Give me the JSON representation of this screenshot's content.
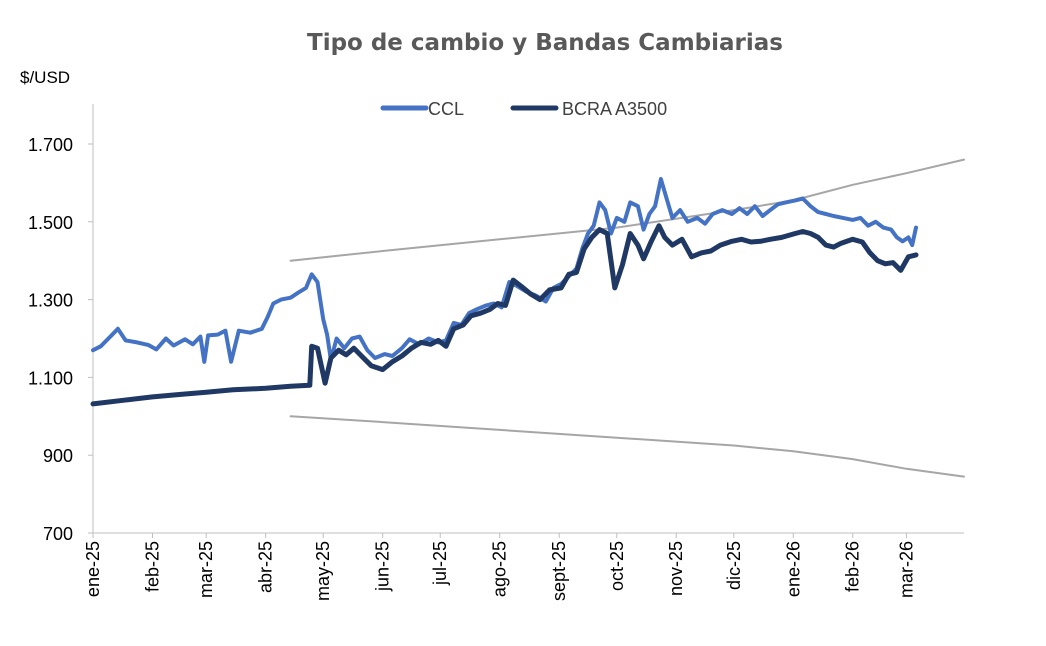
{
  "chart_data": {
    "type": "line",
    "title": "Tipo de cambio y Bandas Cambiarias",
    "ylabel": "$/USD",
    "xlabel": "",
    "ylim": [
      700,
      1800
    ],
    "yticks": [
      "700",
      "900",
      "1.100",
      "1.300",
      "1.500",
      "1.700"
    ],
    "ytick_values": [
      700,
      900,
      1100,
      1300,
      1500,
      1700
    ],
    "x_start": "2025-01-01",
    "x_end": "2026-03-31",
    "xticks": [
      "ene-25",
      "feb-25",
      "mar-25",
      "abr-25",
      "may-25",
      "jun-25",
      "jul-25",
      "ago-25",
      "sept-25",
      "oct-25",
      "nov-25",
      "dic-25",
      "ene-26",
      "feb-26",
      "mar-26"
    ],
    "xtick_dates": [
      "2025-01-01",
      "2025-02-01",
      "2025-03-01",
      "2025-04-01",
      "2025-05-01",
      "2025-06-01",
      "2025-07-01",
      "2025-08-01",
      "2025-09-01",
      "2025-10-01",
      "2025-11-01",
      "2025-12-01",
      "2026-01-01",
      "2026-02-01",
      "2026-03-01"
    ],
    "legend": [
      "CCL",
      "BCRA A3500"
    ],
    "grid": false,
    "series": [
      {
        "name": "CCL",
        "color": "#4472c4",
        "points": [
          [
            "2025-01-01",
            1170
          ],
          [
            "2025-01-05",
            1180
          ],
          [
            "2025-01-10",
            1205
          ],
          [
            "2025-01-14",
            1225
          ],
          [
            "2025-01-18",
            1195
          ],
          [
            "2025-01-24",
            1190
          ],
          [
            "2025-01-30",
            1183
          ],
          [
            "2025-02-03",
            1172
          ],
          [
            "2025-02-08",
            1200
          ],
          [
            "2025-02-12",
            1182
          ],
          [
            "2025-02-18",
            1198
          ],
          [
            "2025-02-22",
            1185
          ],
          [
            "2025-02-26",
            1205
          ],
          [
            "2025-02-28",
            1140
          ],
          [
            "2025-03-02",
            1208
          ],
          [
            "2025-03-07",
            1210
          ],
          [
            "2025-03-11",
            1220
          ],
          [
            "2025-03-14",
            1140
          ],
          [
            "2025-03-18",
            1220
          ],
          [
            "2025-03-24",
            1215
          ],
          [
            "2025-03-30",
            1225
          ],
          [
            "2025-04-02",
            1255
          ],
          [
            "2025-04-05",
            1290
          ],
          [
            "2025-04-09",
            1300
          ],
          [
            "2025-04-14",
            1305
          ],
          [
            "2025-04-18",
            1318
          ],
          [
            "2025-04-22",
            1330
          ],
          [
            "2025-04-25",
            1365
          ],
          [
            "2025-04-28",
            1345
          ],
          [
            "2025-05-01",
            1250
          ],
          [
            "2025-05-03",
            1210
          ],
          [
            "2025-05-05",
            1145
          ],
          [
            "2025-05-08",
            1200
          ],
          [
            "2025-05-12",
            1175
          ],
          [
            "2025-05-16",
            1200
          ],
          [
            "2025-05-20",
            1205
          ],
          [
            "2025-05-24",
            1170
          ],
          [
            "2025-05-28",
            1150
          ],
          [
            "2025-06-02",
            1160
          ],
          [
            "2025-06-06",
            1155
          ],
          [
            "2025-06-11",
            1175
          ],
          [
            "2025-06-15",
            1198
          ],
          [
            "2025-06-20",
            1185
          ],
          [
            "2025-06-25",
            1200
          ],
          [
            "2025-06-30",
            1190
          ],
          [
            "2025-07-04",
            1195
          ],
          [
            "2025-07-08",
            1240
          ],
          [
            "2025-07-12",
            1235
          ],
          [
            "2025-07-16",
            1265
          ],
          [
            "2025-07-20",
            1275
          ],
          [
            "2025-07-25",
            1285
          ],
          [
            "2025-07-29",
            1290
          ],
          [
            "2025-08-02",
            1280
          ],
          [
            "2025-08-06",
            1345
          ],
          [
            "2025-08-10",
            1335
          ],
          [
            "2025-08-15",
            1320
          ],
          [
            "2025-08-20",
            1310
          ],
          [
            "2025-08-25",
            1295
          ],
          [
            "2025-08-29",
            1330
          ],
          [
            "2025-09-02",
            1340
          ],
          [
            "2025-09-06",
            1360
          ],
          [
            "2025-09-10",
            1380
          ],
          [
            "2025-09-13",
            1430
          ],
          [
            "2025-09-16",
            1470
          ],
          [
            "2025-09-19",
            1490
          ],
          [
            "2025-09-22",
            1550
          ],
          [
            "2025-09-25",
            1530
          ],
          [
            "2025-09-28",
            1470
          ],
          [
            "2025-10-01",
            1510
          ],
          [
            "2025-10-05",
            1500
          ],
          [
            "2025-10-08",
            1550
          ],
          [
            "2025-10-12",
            1540
          ],
          [
            "2025-10-15",
            1480
          ],
          [
            "2025-10-18",
            1520
          ],
          [
            "2025-10-21",
            1540
          ],
          [
            "2025-10-24",
            1610
          ],
          [
            "2025-10-27",
            1560
          ],
          [
            "2025-10-30",
            1510
          ],
          [
            "2025-11-03",
            1530
          ],
          [
            "2025-11-07",
            1500
          ],
          [
            "2025-11-12",
            1510
          ],
          [
            "2025-11-16",
            1495
          ],
          [
            "2025-11-20",
            1520
          ],
          [
            "2025-11-25",
            1530
          ],
          [
            "2025-11-30",
            1520
          ],
          [
            "2025-12-04",
            1535
          ],
          [
            "2025-12-08",
            1520
          ],
          [
            "2025-12-12",
            1540
          ],
          [
            "2025-12-16",
            1515
          ],
          [
            "2025-12-20",
            1530
          ],
          [
            "2025-12-24",
            1545
          ],
          [
            "2025-12-28",
            1550
          ],
          [
            "2026-01-02",
            1555
          ],
          [
            "2026-01-06",
            1560
          ],
          [
            "2026-01-10",
            1540
          ],
          [
            "2026-01-14",
            1525
          ],
          [
            "2026-01-18",
            1520
          ],
          [
            "2026-01-22",
            1515
          ],
          [
            "2026-01-27",
            1510
          ],
          [
            "2026-02-01",
            1505
          ],
          [
            "2026-02-05",
            1510
          ],
          [
            "2026-02-09",
            1490
          ],
          [
            "2026-02-13",
            1500
          ],
          [
            "2026-02-17",
            1485
          ],
          [
            "2026-02-21",
            1480
          ],
          [
            "2026-02-24",
            1460
          ],
          [
            "2026-02-27",
            1450
          ],
          [
            "2026-03-02",
            1460
          ],
          [
            "2026-03-04",
            1440
          ],
          [
            "2026-03-06",
            1485
          ]
        ]
      },
      {
        "name": "BCRA A3500",
        "color": "#1f3864",
        "points": [
          [
            "2025-01-01",
            1032
          ],
          [
            "2025-01-15",
            1040
          ],
          [
            "2025-02-01",
            1050
          ],
          [
            "2025-02-15",
            1056
          ],
          [
            "2025-03-01",
            1062
          ],
          [
            "2025-03-15",
            1068
          ],
          [
            "2025-04-01",
            1072
          ],
          [
            "2025-04-14",
            1077
          ],
          [
            "2025-04-24",
            1080
          ],
          [
            "2025-04-25",
            1180
          ],
          [
            "2025-04-28",
            1175
          ],
          [
            "2025-05-02",
            1085
          ],
          [
            "2025-05-05",
            1150
          ],
          [
            "2025-05-09",
            1170
          ],
          [
            "2025-05-13",
            1158
          ],
          [
            "2025-05-17",
            1175
          ],
          [
            "2025-05-22",
            1150
          ],
          [
            "2025-05-26",
            1130
          ],
          [
            "2025-06-01",
            1120
          ],
          [
            "2025-06-06",
            1140
          ],
          [
            "2025-06-11",
            1155
          ],
          [
            "2025-06-16",
            1175
          ],
          [
            "2025-06-21",
            1190
          ],
          [
            "2025-06-26",
            1185
          ],
          [
            "2025-06-30",
            1195
          ],
          [
            "2025-07-04",
            1180
          ],
          [
            "2025-07-08",
            1225
          ],
          [
            "2025-07-13",
            1235
          ],
          [
            "2025-07-17",
            1258
          ],
          [
            "2025-07-22",
            1265
          ],
          [
            "2025-07-27",
            1275
          ],
          [
            "2025-07-31",
            1290
          ],
          [
            "2025-08-04",
            1285
          ],
          [
            "2025-08-08",
            1350
          ],
          [
            "2025-08-12",
            1335
          ],
          [
            "2025-08-17",
            1315
          ],
          [
            "2025-08-22",
            1300
          ],
          [
            "2025-08-27",
            1325
          ],
          [
            "2025-09-02",
            1330
          ],
          [
            "2025-09-06",
            1365
          ],
          [
            "2025-09-10",
            1370
          ],
          [
            "2025-09-14",
            1430
          ],
          [
            "2025-09-18",
            1460
          ],
          [
            "2025-09-22",
            1480
          ],
          [
            "2025-09-26",
            1470
          ],
          [
            "2025-09-30",
            1330
          ],
          [
            "2025-10-04",
            1390
          ],
          [
            "2025-10-08",
            1470
          ],
          [
            "2025-10-12",
            1440
          ],
          [
            "2025-10-15",
            1405
          ],
          [
            "2025-10-19",
            1450
          ],
          [
            "2025-10-23",
            1490
          ],
          [
            "2025-10-26",
            1460
          ],
          [
            "2025-10-30",
            1440
          ],
          [
            "2025-11-04",
            1455
          ],
          [
            "2025-11-09",
            1410
          ],
          [
            "2025-11-14",
            1420
          ],
          [
            "2025-11-19",
            1425
          ],
          [
            "2025-11-24",
            1440
          ],
          [
            "2025-11-30",
            1450
          ],
          [
            "2025-12-05",
            1455
          ],
          [
            "2025-12-10",
            1448
          ],
          [
            "2025-12-15",
            1450
          ],
          [
            "2025-12-20",
            1455
          ],
          [
            "2025-12-26",
            1460
          ],
          [
            "2026-01-02",
            1470
          ],
          [
            "2026-01-06",
            1475
          ],
          [
            "2026-01-10",
            1470
          ],
          [
            "2026-01-14",
            1460
          ],
          [
            "2026-01-18",
            1440
          ],
          [
            "2026-01-22",
            1435
          ],
          [
            "2026-01-26",
            1445
          ],
          [
            "2026-02-01",
            1455
          ],
          [
            "2026-02-06",
            1448
          ],
          [
            "2026-02-10",
            1420
          ],
          [
            "2026-02-14",
            1400
          ],
          [
            "2026-02-18",
            1392
          ],
          [
            "2026-02-22",
            1395
          ],
          [
            "2026-02-26",
            1375
          ],
          [
            "2026-03-02",
            1410
          ],
          [
            "2026-03-06",
            1415
          ]
        ]
      },
      {
        "name": "",
        "color": "#a6a6a6",
        "points": [
          [
            "2025-04-14",
            1400
          ],
          [
            "2025-06-01",
            1425
          ],
          [
            "2025-08-01",
            1455
          ],
          [
            "2025-10-01",
            1485
          ],
          [
            "2025-12-01",
            1530
          ],
          [
            "2026-01-01",
            1555
          ],
          [
            "2026-02-01",
            1595
          ],
          [
            "2026-03-01",
            1625
          ],
          [
            "2026-03-31",
            1660
          ]
        ]
      },
      {
        "name": "",
        "color": "#a6a6a6",
        "points": [
          [
            "2025-04-14",
            1000
          ],
          [
            "2025-06-01",
            985
          ],
          [
            "2025-08-01",
            965
          ],
          [
            "2025-10-01",
            945
          ],
          [
            "2025-12-01",
            925
          ],
          [
            "2026-01-01",
            910
          ],
          [
            "2026-02-01",
            890
          ],
          [
            "2026-03-01",
            865
          ],
          [
            "2026-03-31",
            845
          ]
        ]
      }
    ]
  }
}
